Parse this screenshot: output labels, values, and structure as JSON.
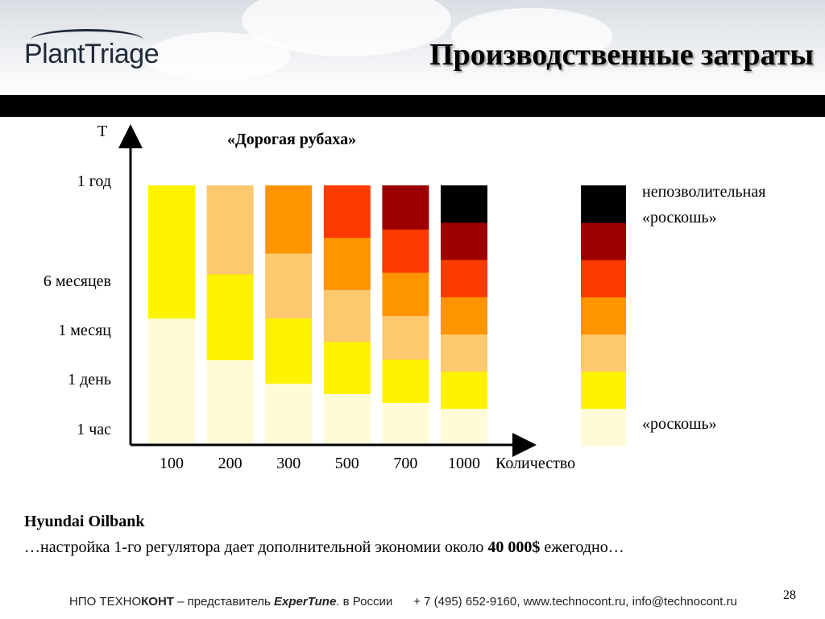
{
  "header": {
    "logo": "PlantTriage",
    "title": "Производственные затраты"
  },
  "chart_data": {
    "type": "bar",
    "title": "«Дорогая рубаха»",
    "xlabel": "Количество",
    "ylabel": "T",
    "categories": [
      "100",
      "200",
      "300",
      "500",
      "700",
      "1000"
    ],
    "y_levels": [
      "1 час",
      "1 день",
      "1 месяц",
      "6 месяцев",
      "1 год"
    ],
    "stacked": true,
    "colors": [
      "#fefbd6",
      "#fdf200",
      "#fdc86e",
      "#fd9400",
      "#fd3a00",
      "#9c0000",
      "#000000"
    ],
    "bars": [
      {
        "category": "100",
        "stops": [
          0,
          0.49,
          1.0
        ]
      },
      {
        "category": "200",
        "stops": [
          0,
          0.33,
          0.66,
          1.0
        ]
      },
      {
        "category": "300",
        "stops": [
          0,
          0.24,
          0.49,
          0.74,
          1.0
        ]
      },
      {
        "category": "500",
        "stops": [
          0,
          0.2,
          0.4,
          0.6,
          0.8,
          1.0
        ]
      },
      {
        "category": "700",
        "stops": [
          0,
          0.166,
          0.332,
          0.5,
          0.666,
          0.832,
          1.0
        ]
      },
      {
        "category": "1000",
        "stops": [
          0,
          0.143,
          0.286,
          0.429,
          0.572,
          0.715,
          0.858,
          1.0
        ]
      }
    ],
    "legend": {
      "top_label": "непозволительная «роскошь»",
      "top_label_line1": "непозволительная",
      "top_label_line2": "«роскошь»",
      "bottom_label": "«роскошь»"
    }
  },
  "body": {
    "company": "Hyundai Oilbank",
    "text_prefix": "…настройка 1-го регулятора дает дополнительной экономии около ",
    "amount": "40 000$",
    "text_suffix": " ежегодно…"
  },
  "footer": {
    "org_prefix": "НПО ТЕХНО",
    "org_bold": "КОНТ",
    "rep": " – представитель ",
    "brand": "ExperTune",
    "country": ". в России",
    "contacts": "+ 7 (495) 652-9160, www.technocont.ru, info@technocont.ru"
  },
  "page_number": "28"
}
